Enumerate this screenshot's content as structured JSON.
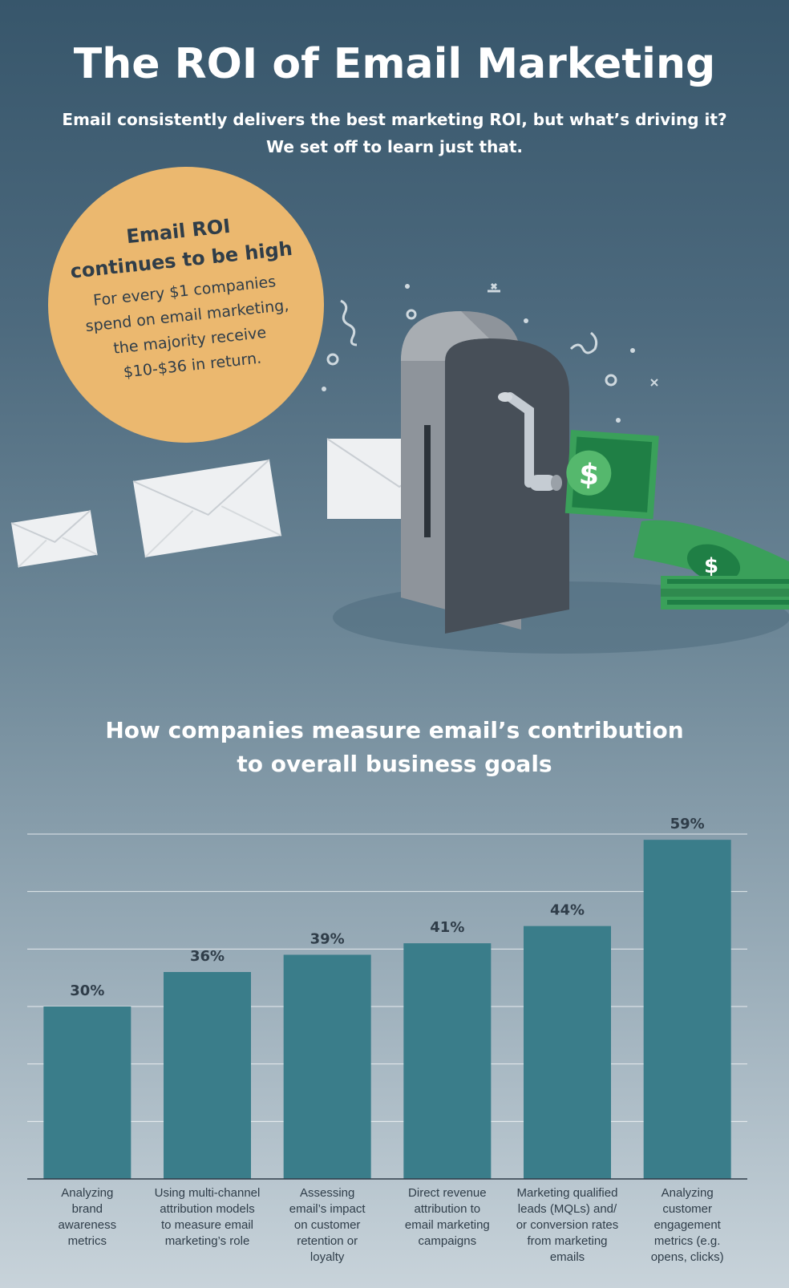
{
  "header": {
    "title": "The ROI of Email Marketing",
    "subtitle": "Email consistently delivers the best marketing ROI, but what’s driving it? We set off to learn just that."
  },
  "badge": {
    "title_line1": "Email ROI",
    "title_line2": "continues to be high",
    "text_line1": "For every $1 companies",
    "text_line2": "spend on email marketing,",
    "text_line3": "the majority receive",
    "text_line4": "$10-$36 in return."
  },
  "illustration": {
    "icons": [
      "mailbox-machine-icon",
      "envelope-icon",
      "dollar-bill-icon",
      "crank-handle-icon"
    ]
  },
  "colors": {
    "bar": "#3a7d8a",
    "badge": "#ebb86f",
    "text_dark": "#2f3d49",
    "money_green": "#3aa05a"
  },
  "chart_data": {
    "type": "bar",
    "title": "How companies measure email’s contribution to overall business goals",
    "title_line1": "How companies measure email’s contribution",
    "title_line2": "to overall business goals",
    "categories": [
      "Analyzing brand awareness metrics",
      "Using multi-channel attribution models to measure email marketing’s role",
      "Assessing email’s impact on customer retention or loyalty",
      "Direct revenue attribution to email marketing campaigns",
      "Marketing qualified leads (MQLs) and/ or conversion rates from marketing emails",
      "Analyzing customer engagement metrics (e.g. opens, clicks)"
    ],
    "category_lines": [
      [
        "Analyzing",
        "brand",
        "awareness",
        "metrics"
      ],
      [
        "Using multi-channel",
        "attribution models",
        "to measure email",
        "marketing’s role"
      ],
      [
        "Assessing",
        "email’s impact",
        "on customer",
        "retention or",
        "loyalty"
      ],
      [
        "Direct revenue",
        "attribution to",
        "email marketing",
        "campaigns"
      ],
      [
        "Marketing qualified",
        "leads (MQLs) and/",
        "or conversion rates",
        "from marketing",
        "emails"
      ],
      [
        "Analyzing",
        "customer",
        "engagement",
        "metrics (e.g.",
        "opens, clicks)"
      ]
    ],
    "values": [
      30,
      36,
      39,
      41,
      44,
      59
    ],
    "value_labels": [
      "30%",
      "36%",
      "39%",
      "41%",
      "44%",
      "59%"
    ],
    "ylim": [
      0,
      60
    ],
    "grid": true
  }
}
